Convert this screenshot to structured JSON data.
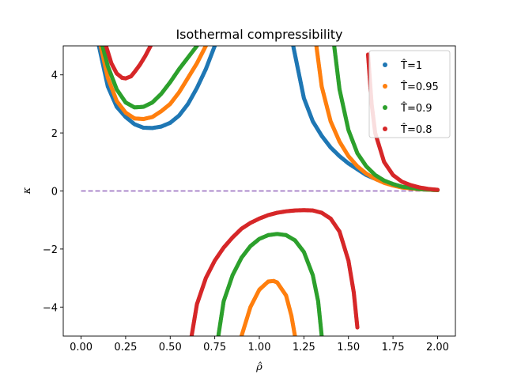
{
  "chart_data": {
    "type": "scatter",
    "title": "Isothermal compressibility",
    "xlabel": "ρ̂",
    "ylabel": "κ",
    "xlim": [
      -0.1,
      2.1
    ],
    "ylim": [
      -5,
      5
    ],
    "x_ticks": [
      0.0,
      0.25,
      0.5,
      0.75,
      1.0,
      1.25,
      1.5,
      1.75,
      2.0
    ],
    "x_tick_labels": [
      "0.00",
      "0.25",
      "0.50",
      "0.75",
      "1.00",
      "1.25",
      "1.50",
      "1.75",
      "2.00"
    ],
    "y_ticks": [
      -4,
      -2,
      0,
      2,
      4
    ],
    "y_tick_labels": [
      "−4",
      "−2",
      "0",
      "2",
      "4"
    ],
    "legend_position": "upper-right",
    "reference_line": {
      "y": 0,
      "x_range": [
        0,
        2
      ],
      "style": "dashed",
      "color": "#9467bd"
    },
    "series": [
      {
        "name": "T̂=1",
        "legend_label": "T̂=1",
        "color": "#1f77b4",
        "branches": [
          {
            "x": [
              0.1,
              0.15,
              0.2,
              0.25,
              0.3,
              0.35,
              0.4,
              0.45,
              0.5,
              0.55,
              0.6,
              0.65,
              0.7,
              0.75
            ],
            "y": [
              5.0,
              3.6,
              2.9,
              2.55,
              2.3,
              2.18,
              2.17,
              2.22,
              2.35,
              2.6,
              3.0,
              3.55,
              4.2,
              5.0
            ]
          },
          {
            "x": [
              1.19,
              1.25,
              1.3,
              1.35,
              1.4,
              1.45,
              1.5,
              1.55,
              1.6,
              1.65,
              1.7,
              1.75,
              1.8,
              1.9,
              2.0
            ],
            "y": [
              5.0,
              3.2,
              2.4,
              1.9,
              1.5,
              1.2,
              0.95,
              0.75,
              0.55,
              0.42,
              0.3,
              0.2,
              0.13,
              0.06,
              0.03
            ]
          }
        ]
      },
      {
        "name": "T̂=0.95",
        "legend_label": "T̂=0.95",
        "color": "#ff7f0e",
        "branches": [
          {
            "x": [
              0.11,
              0.15,
              0.2,
              0.25,
              0.3,
              0.35,
              0.4,
              0.45,
              0.5,
              0.55,
              0.6,
              0.65,
              0.7
            ],
            "y": [
              5.0,
              3.9,
              3.1,
              2.7,
              2.5,
              2.48,
              2.55,
              2.75,
              3.0,
              3.4,
              3.9,
              4.4,
              5.0
            ]
          },
          {
            "x": [
              0.9,
              0.95,
              1.0,
              1.05,
              1.08,
              1.1,
              1.15,
              1.18,
              1.2
            ],
            "y": [
              -5.0,
              -4.0,
              -3.4,
              -3.12,
              -3.1,
              -3.15,
              -3.6,
              -4.3,
              -5.0
            ]
          },
          {
            "x": [
              1.32,
              1.35,
              1.4,
              1.45,
              1.5,
              1.55,
              1.6,
              1.65,
              1.7,
              1.75,
              1.8,
              1.9,
              2.0
            ],
            "y": [
              5.0,
              3.6,
              2.4,
              1.7,
              1.2,
              0.85,
              0.6,
              0.42,
              0.28,
              0.19,
              0.12,
              0.06,
              0.03
            ]
          }
        ]
      },
      {
        "name": "T̂=0.9",
        "legend_label": "T̂=0.9",
        "color": "#2ca02c",
        "branches": [
          {
            "x": [
              0.12,
              0.15,
              0.2,
              0.25,
              0.3,
              0.35,
              0.4,
              0.45,
              0.5,
              0.55,
              0.6,
              0.65
            ],
            "y": [
              5.0,
              4.3,
              3.5,
              3.05,
              2.88,
              2.9,
              3.05,
              3.35,
              3.75,
              4.2,
              4.6,
              5.0
            ]
          },
          {
            "x": [
              0.77,
              0.8,
              0.85,
              0.9,
              0.95,
              1.0,
              1.05,
              1.1,
              1.15,
              1.2,
              1.25,
              1.3,
              1.33,
              1.35
            ],
            "y": [
              -5.0,
              -3.8,
              -2.9,
              -2.3,
              -1.9,
              -1.65,
              -1.52,
              -1.48,
              -1.52,
              -1.7,
              -2.1,
              -2.9,
              -3.8,
              -5.0
            ]
          },
          {
            "x": [
              1.42,
              1.45,
              1.5,
              1.55,
              1.6,
              1.65,
              1.7,
              1.75,
              1.8,
              1.9,
              2.0
            ],
            "y": [
              5.0,
              3.5,
              2.1,
              1.3,
              0.85,
              0.55,
              0.36,
              0.24,
              0.15,
              0.07,
              0.03
            ]
          }
        ]
      },
      {
        "name": "T̂=0.8",
        "legend_label": "T̂=0.8",
        "color": "#d62728",
        "branches": [
          {
            "x": [
              0.14,
              0.17,
              0.2,
              0.23,
              0.25,
              0.28,
              0.3,
              0.33,
              0.36,
              0.39
            ],
            "y": [
              5.0,
              4.4,
              4.05,
              3.9,
              3.88,
              3.95,
              4.1,
              4.35,
              4.65,
              5.0
            ]
          },
          {
            "x": [
              0.62,
              0.65,
              0.7,
              0.75,
              0.8,
              0.85,
              0.9,
              0.95,
              1.0,
              1.05,
              1.1,
              1.15,
              1.2,
              1.25,
              1.3,
              1.35,
              1.4,
              1.45,
              1.5,
              1.53,
              1.55
            ],
            "y": [
              -5.0,
              -3.9,
              -3.0,
              -2.4,
              -1.95,
              -1.6,
              -1.3,
              -1.1,
              -0.95,
              -0.83,
              -0.75,
              -0.7,
              -0.67,
              -0.66,
              -0.67,
              -0.75,
              -0.95,
              -1.4,
              -2.4,
              -3.5,
              -4.7
            ]
          },
          {
            "x": [
              1.61,
              1.63,
              1.65,
              1.7,
              1.75,
              1.8,
              1.85,
              1.9,
              1.95,
              2.0
            ],
            "y": [
              4.7,
              3.0,
              2.0,
              1.0,
              0.55,
              0.32,
              0.2,
              0.12,
              0.07,
              0.04
            ]
          }
        ]
      }
    ]
  }
}
